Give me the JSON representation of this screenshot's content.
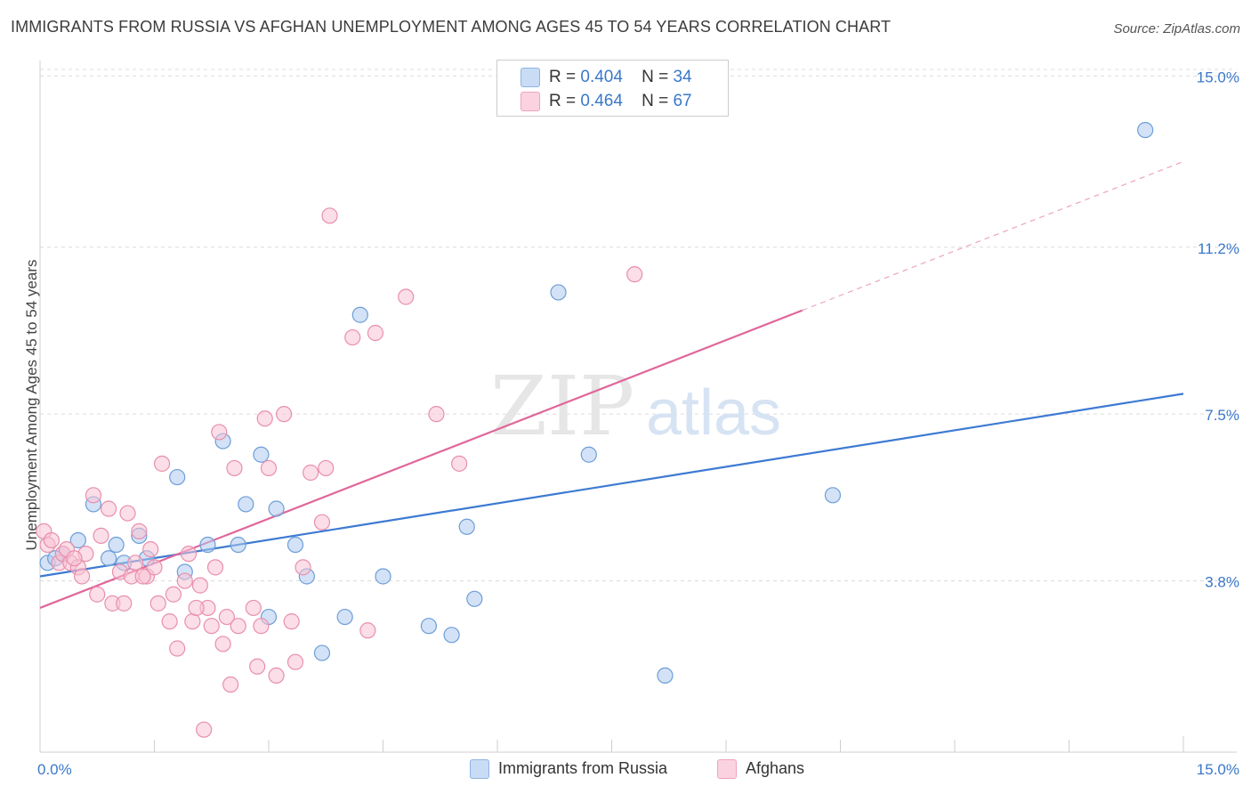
{
  "title": "IMMIGRANTS FROM RUSSIA VS AFGHAN UNEMPLOYMENT AMONG AGES 45 TO 54 YEARS CORRELATION CHART",
  "source": "Source: ZipAtlas.com",
  "watermark": {
    "zip": "ZIP",
    "atlas": "atlas"
  },
  "legend_top": [
    {
      "r_label": "R =",
      "r_value": "0.404",
      "n_label": "N =",
      "n_value": "34"
    },
    {
      "r_label": "R =",
      "r_value": "0.464",
      "n_label": "N =",
      "n_value": "67"
    }
  ],
  "chart_data": {
    "type": "scatter",
    "title": "IMMIGRANTS FROM RUSSIA VS AFGHAN UNEMPLOYMENT AMONG AGES 45 TO 54 YEARS CORRELATION CHART",
    "xlabel": "",
    "ylabel": "Unemployment Among Ages 45 to 54 years",
    "xlim": [
      0,
      15
    ],
    "ylim": [
      0,
      15.5
    ],
    "x_tick_labels": [
      "0.0%",
      "15.0%"
    ],
    "y_ticks": [
      3.8,
      7.5,
      11.2,
      15.0
    ],
    "y_tick_labels": [
      "3.8%",
      "7.5%",
      "11.2%",
      "15.0%"
    ],
    "grid": true,
    "legend_position": "bottom",
    "series": [
      {
        "name": "Immigrants from Russia",
        "color": "#aecbef",
        "stroke": "#6d9ed8",
        "line_color": "#3d7ad2",
        "r": 0.404,
        "n": 34,
        "trend": {
          "x0": 0.0,
          "y0": 3.9,
          "x1": 15.0,
          "y1": 7.95,
          "solid_to": 15.0
        },
        "points": [
          [
            0.1,
            4.2
          ],
          [
            0.3,
            4.4
          ],
          [
            0.5,
            4.7
          ],
          [
            0.7,
            5.5
          ],
          [
            0.9,
            4.3
          ],
          [
            1.0,
            4.6
          ],
          [
            1.3,
            4.8
          ],
          [
            1.4,
            4.3
          ],
          [
            1.8,
            6.1
          ],
          [
            1.9,
            4.0
          ],
          [
            2.2,
            4.6
          ],
          [
            2.4,
            6.9
          ],
          [
            2.6,
            4.6
          ],
          [
            2.7,
            5.5
          ],
          [
            2.9,
            6.6
          ],
          [
            3.0,
            3.0
          ],
          [
            3.1,
            5.4
          ],
          [
            3.35,
            4.6
          ],
          [
            3.5,
            3.9
          ],
          [
            3.7,
            2.2
          ],
          [
            4.0,
            3.0
          ],
          [
            4.2,
            9.7
          ],
          [
            4.5,
            3.9
          ],
          [
            5.1,
            2.8
          ],
          [
            5.4,
            2.6
          ],
          [
            5.6,
            5.0
          ],
          [
            5.7,
            3.4
          ],
          [
            6.8,
            10.2
          ],
          [
            7.2,
            6.6
          ],
          [
            8.2,
            1.7
          ],
          [
            10.4,
            5.7
          ],
          [
            14.5,
            13.8
          ],
          [
            0.2,
            4.3
          ],
          [
            1.1,
            4.2
          ]
        ]
      },
      {
        "name": "Afghans",
        "color": "#f8c3d3",
        "stroke": "#e88fad",
        "line_color": "#e0679a",
        "r": 0.464,
        "n": 67,
        "trend": {
          "x0": 0.0,
          "y0": 3.2,
          "x1": 15.0,
          "y1": 13.1,
          "solid_to": 10.0
        },
        "points": [
          [
            0.05,
            4.9
          ],
          [
            0.1,
            4.6
          ],
          [
            0.15,
            4.7
          ],
          [
            0.25,
            4.2
          ],
          [
            0.3,
            4.4
          ],
          [
            0.4,
            4.2
          ],
          [
            0.5,
            4.1
          ],
          [
            0.55,
            3.9
          ],
          [
            0.6,
            4.4
          ],
          [
            0.7,
            5.7
          ],
          [
            0.75,
            3.5
          ],
          [
            0.8,
            4.8
          ],
          [
            0.9,
            5.4
          ],
          [
            0.95,
            3.3
          ],
          [
            1.05,
            4.0
          ],
          [
            1.1,
            3.3
          ],
          [
            1.15,
            5.3
          ],
          [
            1.2,
            3.9
          ],
          [
            1.25,
            4.2
          ],
          [
            1.3,
            4.9
          ],
          [
            1.4,
            3.9
          ],
          [
            1.45,
            4.5
          ],
          [
            1.5,
            4.1
          ],
          [
            1.55,
            3.3
          ],
          [
            1.6,
            6.4
          ],
          [
            1.7,
            2.9
          ],
          [
            1.75,
            3.5
          ],
          [
            1.8,
            2.3
          ],
          [
            1.9,
            3.8
          ],
          [
            1.95,
            4.4
          ],
          [
            2.0,
            2.9
          ],
          [
            2.1,
            3.7
          ],
          [
            2.15,
            0.5
          ],
          [
            2.2,
            3.2
          ],
          [
            2.25,
            2.8
          ],
          [
            2.3,
            4.1
          ],
          [
            2.35,
            7.1
          ],
          [
            2.4,
            2.4
          ],
          [
            2.45,
            3.0
          ],
          [
            2.5,
            1.5
          ],
          [
            2.55,
            6.3
          ],
          [
            2.6,
            2.8
          ],
          [
            2.8,
            3.2
          ],
          [
            2.85,
            1.9
          ],
          [
            2.9,
            2.8
          ],
          [
            2.95,
            7.4
          ],
          [
            3.0,
            6.3
          ],
          [
            3.1,
            1.7
          ],
          [
            3.2,
            7.5
          ],
          [
            3.3,
            2.9
          ],
          [
            3.35,
            2.0
          ],
          [
            3.45,
            4.1
          ],
          [
            3.55,
            6.2
          ],
          [
            3.7,
            5.1
          ],
          [
            3.75,
            6.3
          ],
          [
            3.8,
            11.9
          ],
          [
            4.1,
            9.2
          ],
          [
            4.3,
            2.7
          ],
          [
            4.4,
            9.3
          ],
          [
            4.8,
            10.1
          ],
          [
            5.2,
            7.5
          ],
          [
            5.5,
            6.4
          ],
          [
            7.8,
            10.6
          ],
          [
            0.35,
            4.5
          ],
          [
            0.45,
            4.3
          ],
          [
            1.35,
            3.9
          ],
          [
            2.05,
            3.2
          ]
        ]
      }
    ]
  },
  "legend_bottom": [
    {
      "label": "Immigrants from Russia"
    },
    {
      "label": "Afghans"
    }
  ],
  "colors": {
    "blue_fill": "#aecbef",
    "blue_line": "#3d7ad2",
    "pink_fill": "#f8c3d3",
    "pink_line": "#e0679a",
    "tick_label": "#3a78c9"
  }
}
